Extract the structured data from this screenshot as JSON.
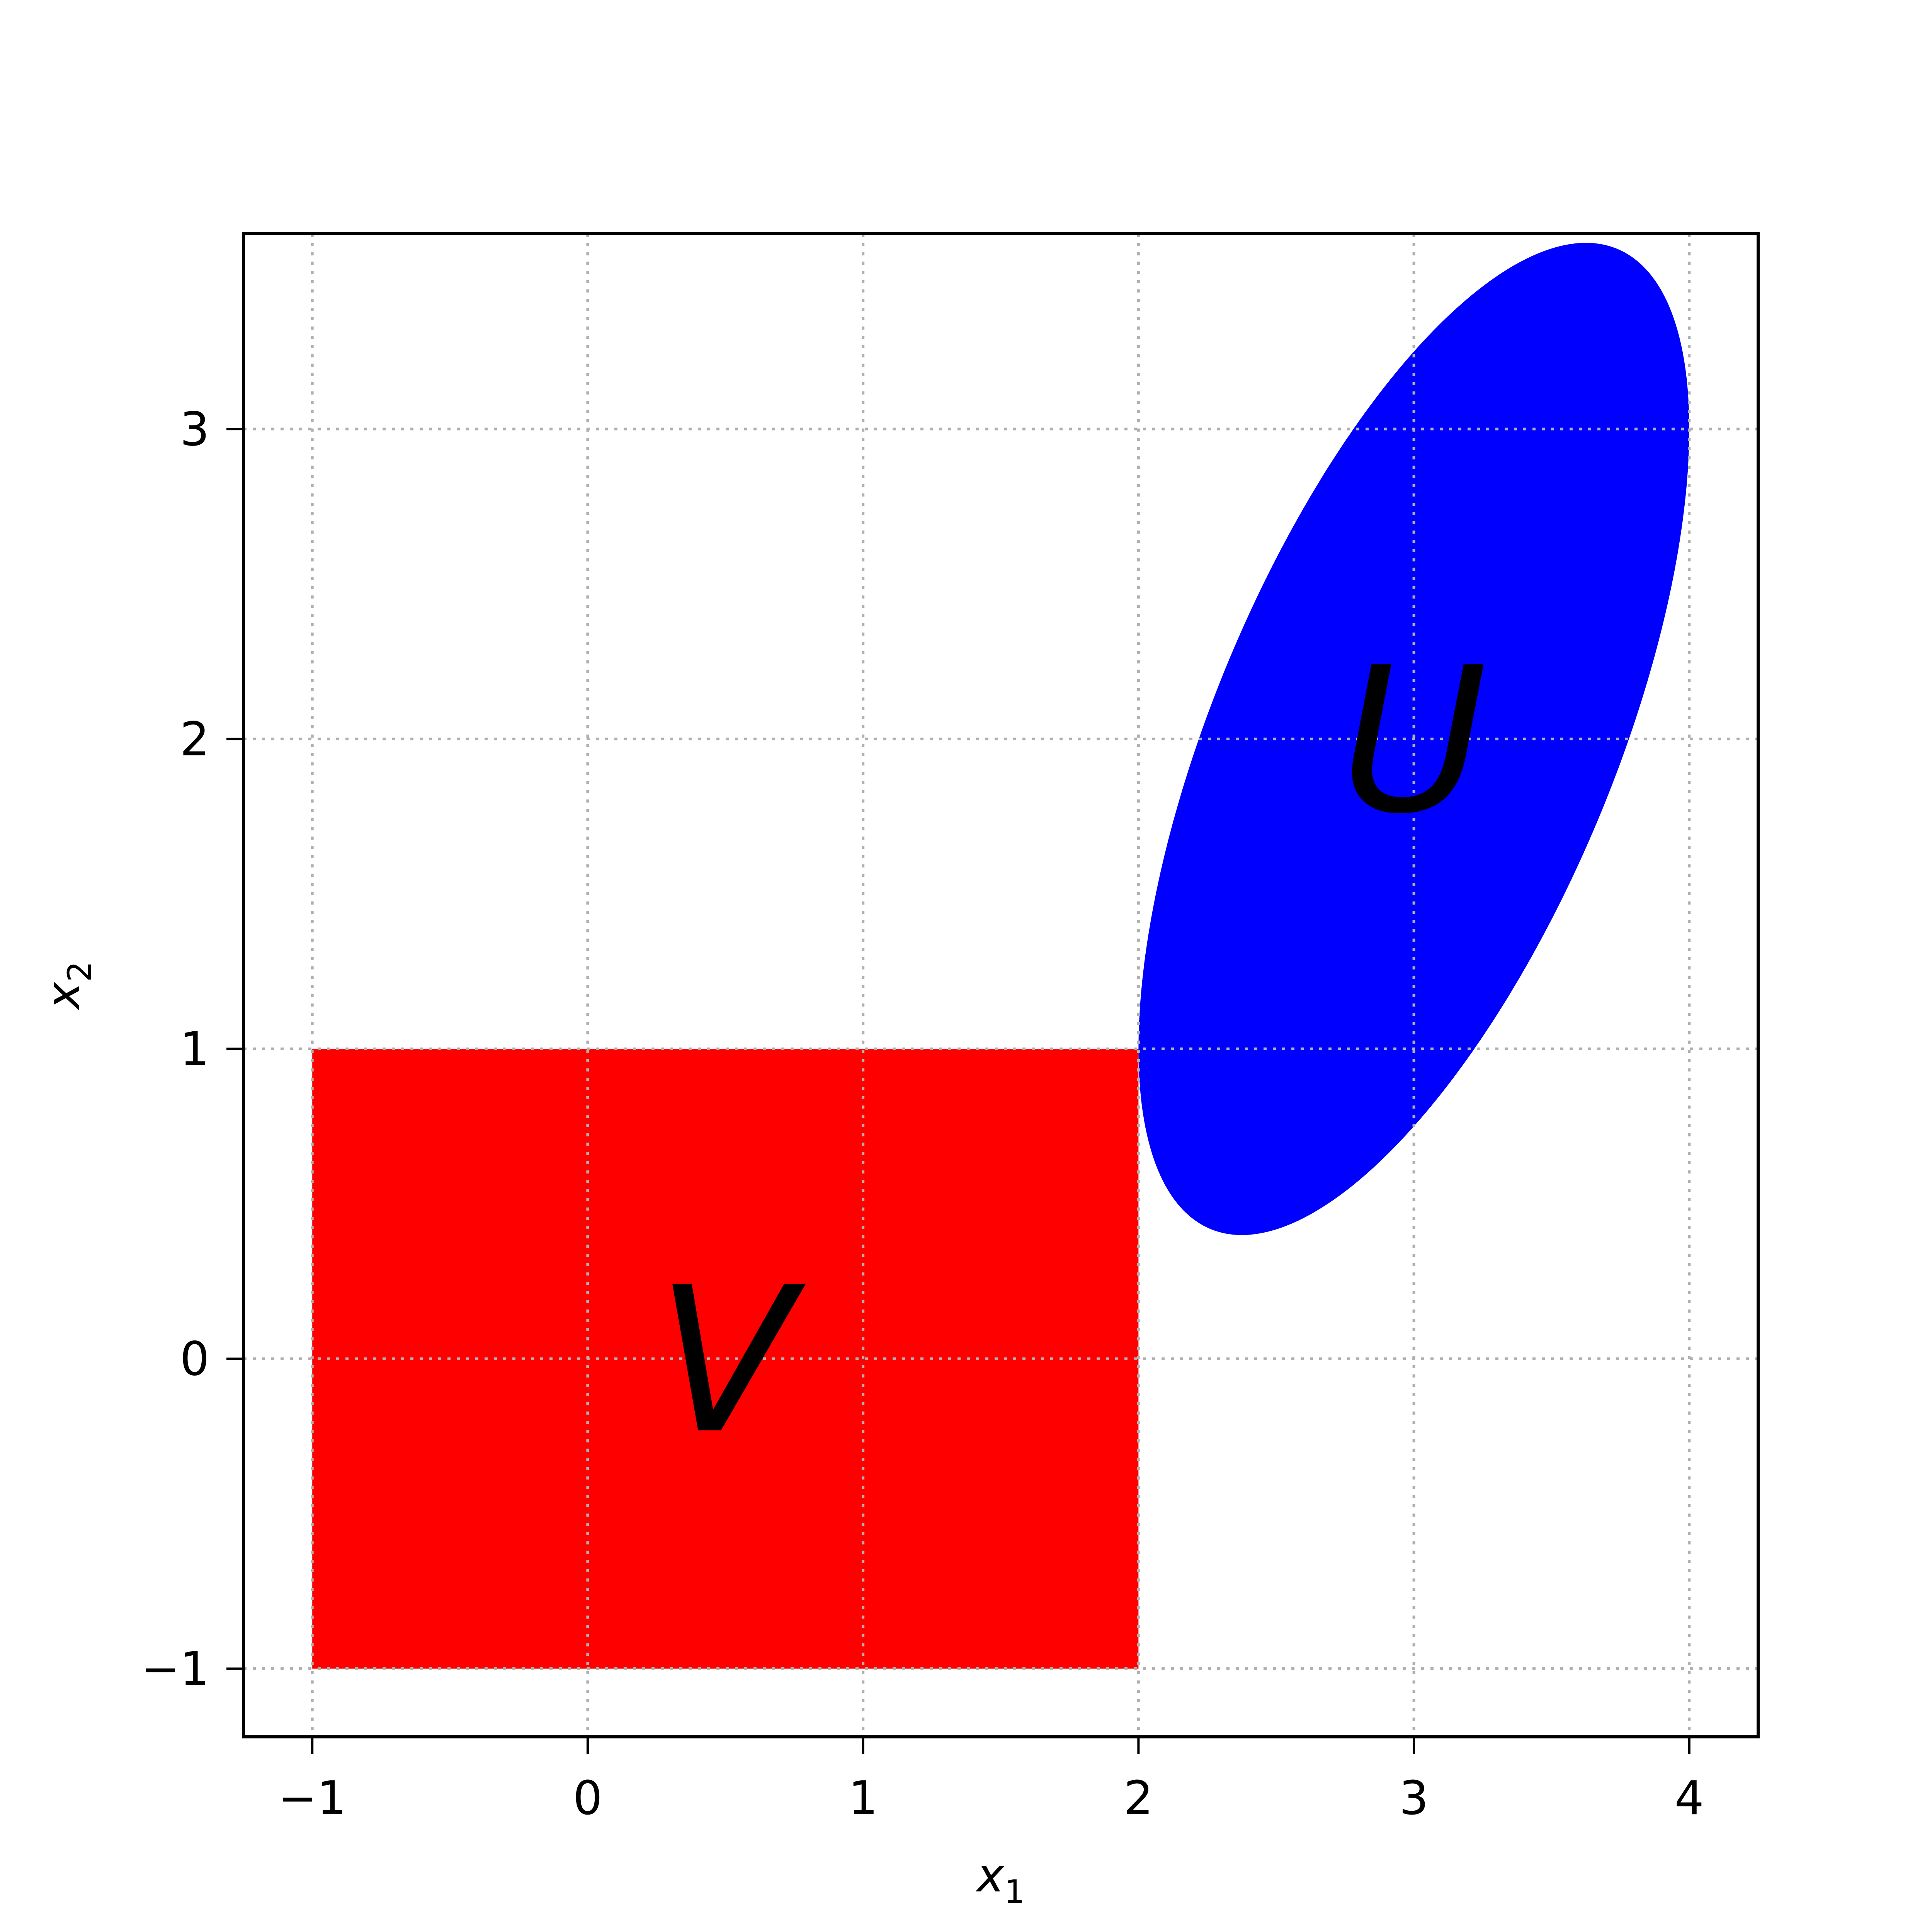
{
  "chart_data": {
    "type": "scatter",
    "title": "",
    "xlabel": "x",
    "xlabel_sub": "1",
    "ylabel": "x",
    "ylabel_sub": "2",
    "xlim": [
      -1.25,
      4.25
    ],
    "ylim": [
      -1.22,
      3.63
    ],
    "grid": true,
    "x_ticks": [
      {
        "value": -1,
        "label": "−1"
      },
      {
        "value": 0,
        "label": "0"
      },
      {
        "value": 1,
        "label": "1"
      },
      {
        "value": 2,
        "label": "2"
      },
      {
        "value": 3,
        "label": "3"
      },
      {
        "value": 4,
        "label": "4"
      }
    ],
    "y_ticks": [
      {
        "value": -1,
        "label": "−1"
      },
      {
        "value": 0,
        "label": "0"
      },
      {
        "value": 1,
        "label": "1"
      },
      {
        "value": 2,
        "label": "2"
      },
      {
        "value": 3,
        "label": "3"
      }
    ],
    "regions": [
      {
        "label": "V",
        "shape": "rectangle",
        "color": "#ff0000",
        "x_min": -1,
        "x_max": 2,
        "y_min": -1,
        "y_max": 1,
        "label_position": {
          "x": 0.5,
          "y": 0
        }
      },
      {
        "label": "U",
        "shape": "ellipse",
        "color": "#0000ff",
        "center": {
          "x": 3,
          "y": 2
        },
        "matrix": [
          [
            1,
            0
          ],
          [
            1,
            1.25
          ]
        ],
        "label_position": {
          "x": 3,
          "y": 2
        }
      }
    ]
  }
}
